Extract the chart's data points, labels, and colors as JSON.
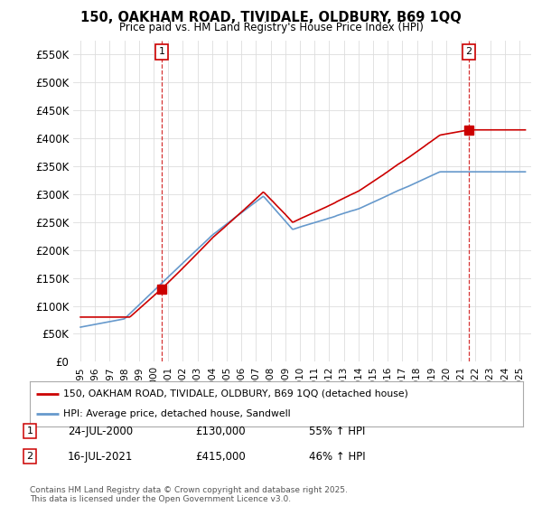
{
  "title_line1": "150, OAKHAM ROAD, TIVIDALE, OLDBURY, B69 1QQ",
  "title_line2": "Price paid vs. HM Land Registry's House Price Index (HPI)",
  "background_color": "#ffffff",
  "grid_color": "#dddddd",
  "red_color": "#cc0000",
  "blue_color": "#6699cc",
  "ylim": [
    0,
    575000
  ],
  "yticks": [
    0,
    50000,
    100000,
    150000,
    200000,
    250000,
    300000,
    350000,
    400000,
    450000,
    500000,
    550000
  ],
  "ytick_labels": [
    "£0",
    "£50K",
    "£100K",
    "£150K",
    "£200K",
    "£250K",
    "£300K",
    "£350K",
    "£400K",
    "£450K",
    "£500K",
    "£550K"
  ],
  "xlim_start": 1994.5,
  "xlim_end": 2025.8,
  "xticks": [
    1995,
    1996,
    1997,
    1998,
    1999,
    2000,
    2001,
    2002,
    2003,
    2004,
    2005,
    2006,
    2007,
    2008,
    2009,
    2010,
    2011,
    2012,
    2013,
    2014,
    2015,
    2016,
    2017,
    2018,
    2019,
    2020,
    2021,
    2022,
    2023,
    2024,
    2025
  ],
  "sale1_x": 2000.55,
  "sale1_y": 130000,
  "sale1_label": "1",
  "sale2_x": 2021.54,
  "sale2_y": 415000,
  "sale2_label": "2",
  "legend_line1": "150, OAKHAM ROAD, TIVIDALE, OLDBURY, B69 1QQ (detached house)",
  "legend_line2": "HPI: Average price, detached house, Sandwell",
  "annotation1_date": "24-JUL-2000",
  "annotation1_price": "£130,000",
  "annotation1_hpi": "55% ↑ HPI",
  "annotation2_date": "16-JUL-2021",
  "annotation2_price": "£415,000",
  "annotation2_hpi": "46% ↑ HPI",
  "footer": "Contains HM Land Registry data © Crown copyright and database right 2025.\nThis data is licensed under the Open Government Licence v3.0."
}
